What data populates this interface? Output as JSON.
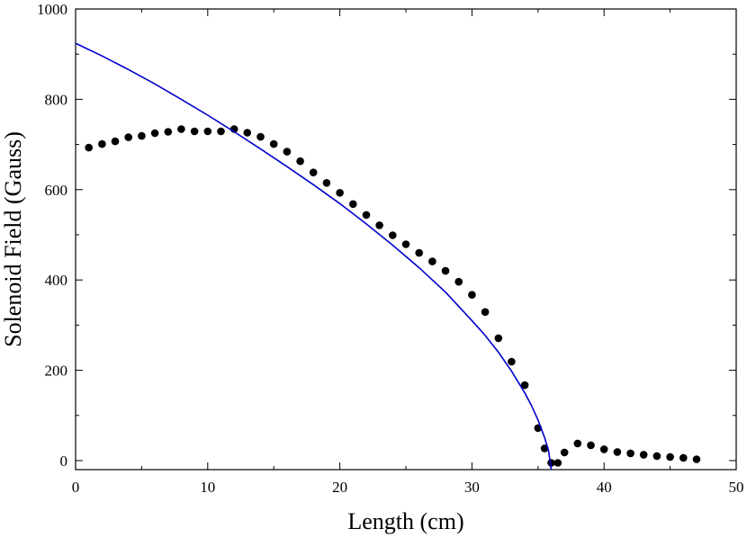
{
  "chart_data": {
    "type": "scatter",
    "title": "",
    "xlabel": "Length (cm)",
    "ylabel": "Solenoid Field (Gauss)",
    "xlim": [
      0,
      50
    ],
    "ylim": [
      -20,
      1000
    ],
    "xticks": [
      0,
      10,
      20,
      30,
      40,
      50
    ],
    "yticks": [
      0,
      200,
      400,
      600,
      800,
      1000
    ],
    "grid": false,
    "legend": "none",
    "colors": {
      "points": "#000000",
      "curve": "#0000cc",
      "frame": "#000000"
    },
    "series": [
      {
        "kind": "points",
        "x": [
          1,
          2,
          3,
          4,
          5,
          6,
          7,
          8,
          9,
          10,
          11,
          12,
          13,
          14,
          15,
          16,
          17,
          18,
          19,
          20,
          21,
          22,
          23,
          24,
          25,
          26,
          27,
          28,
          29,
          30,
          31,
          32,
          33,
          34,
          35,
          35.5,
          36,
          36.5,
          37,
          38,
          39,
          40,
          41,
          42,
          43,
          44,
          45,
          46,
          47
        ],
        "y": [
          693,
          701,
          707,
          716,
          719,
          725,
          728,
          734,
          729,
          729,
          729,
          734,
          726,
          717,
          701,
          684,
          663,
          638,
          615,
          593,
          568,
          544,
          521,
          499,
          479,
          460,
          441,
          420,
          396,
          367,
          329,
          271,
          219,
          167,
          72,
          27,
          -5,
          -5,
          18,
          38,
          34,
          25,
          19,
          16,
          13,
          10,
          8,
          6,
          3
        ]
      },
      {
        "kind": "line",
        "x": [
          0,
          2,
          4,
          6,
          8,
          10,
          12,
          14,
          16,
          18,
          20,
          22,
          24,
          26,
          28,
          30,
          31,
          32,
          33,
          34,
          34.5,
          35,
          35.5,
          35.8,
          36
        ],
        "y": [
          924,
          896,
          866,
          834,
          800,
          765,
          728,
          690,
          651,
          611,
          569,
          524,
          477,
          427,
          373,
          310,
          277,
          240,
          198,
          150,
          122,
          90,
          51,
          22,
          -20
        ]
      }
    ]
  }
}
